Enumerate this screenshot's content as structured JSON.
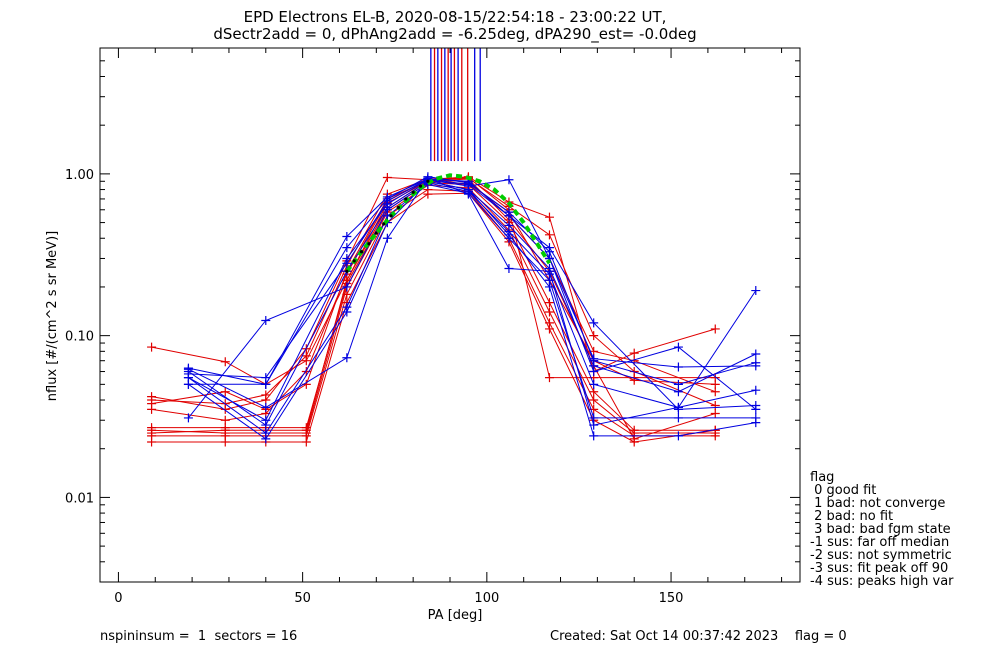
{
  "chart_data": {
    "type": "scatter",
    "title_line1": "EPD Electrons EL-B, 2020-08-15/22:54:18 - 23:00:22 UT,",
    "title_line2": "dSectr2add = 0, dPhAng2add = -6.25deg, dPA290_est=  -0.0deg",
    "xlabel": "PA [deg]",
    "ylabel": "nflux [#/(cm^2 s sr MeV)]",
    "xlim": [
      -5,
      185
    ],
    "ylim": [
      0.003,
      6
    ],
    "yscale": "log",
    "xticks": [
      0,
      50,
      100,
      150
    ],
    "xtick_labels": [
      "0",
      "50",
      "100",
      "150"
    ],
    "yticks": [
      0.01,
      0.1,
      1
    ],
    "ytick_labels": [
      "0.01",
      "0.10",
      "1.00"
    ],
    "colors": {
      "red": "#e00000",
      "blue": "#0000e0",
      "green": "#00cc00",
      "black": "#000000"
    },
    "series": [
      {
        "color": "red",
        "x": [
          9,
          29,
          40,
          51,
          62,
          73,
          84,
          95,
          106,
          117,
          129,
          140,
          162
        ],
        "y": [
          0.085,
          0.069,
          0.05,
          0.07,
          0.22,
          0.62,
          0.9,
          0.87,
          0.58,
          0.22,
          0.07,
          0.053,
          0.05
        ]
      },
      {
        "color": "red",
        "x": [
          9,
          29,
          40,
          51,
          62,
          73,
          84,
          95,
          106,
          117,
          129,
          140,
          162
        ],
        "y": [
          0.042,
          0.035,
          0.04,
          0.083,
          0.29,
          0.95,
          0.92,
          0.96,
          0.67,
          0.54,
          0.06,
          0.078,
          0.11
        ]
      },
      {
        "color": "red",
        "x": [
          9,
          29,
          40,
          51,
          62,
          73,
          84,
          95,
          106,
          117,
          129,
          140,
          162
        ],
        "y": [
          0.026,
          0.025,
          0.025,
          0.025,
          0.2,
          0.58,
          0.85,
          0.82,
          0.45,
          0.14,
          0.04,
          0.025,
          0.025
        ]
      },
      {
        "color": "red",
        "x": [
          9,
          29,
          40,
          51,
          62,
          73,
          84,
          95,
          106,
          117,
          129,
          140,
          162
        ],
        "y": [
          0.027,
          0.027,
          0.027,
          0.027,
          0.21,
          0.6,
          0.88,
          0.86,
          0.5,
          0.16,
          0.045,
          0.026,
          0.026
        ]
      },
      {
        "color": "red",
        "x": [
          9,
          29,
          40,
          51,
          62,
          73,
          84,
          95,
          106,
          117,
          129,
          140,
          162
        ],
        "y": [
          0.024,
          0.024,
          0.024,
          0.024,
          0.18,
          0.55,
          0.8,
          0.78,
          0.4,
          0.12,
          0.035,
          0.024,
          0.024
        ]
      },
      {
        "color": "red",
        "x": [
          9,
          29,
          40,
          51,
          62,
          73,
          84,
          95,
          106,
          117,
          129,
          140,
          162
        ],
        "y": [
          0.022,
          0.022,
          0.022,
          0.022,
          0.16,
          0.5,
          0.75,
          0.76,
          0.38,
          0.11,
          0.03,
          0.022,
          0.026
        ]
      },
      {
        "color": "red",
        "x": [
          9,
          29,
          40,
          51,
          62,
          73,
          84,
          95,
          106,
          117,
          129,
          140,
          162
        ],
        "y": [
          0.038,
          0.045,
          0.035,
          0.05,
          0.25,
          0.7,
          0.91,
          0.9,
          0.55,
          0.3,
          0.08,
          0.07,
          0.045
        ]
      },
      {
        "color": "red",
        "x": [
          9,
          29,
          40,
          51,
          62,
          73,
          84,
          95,
          106,
          117,
          129,
          140,
          162
        ],
        "y": [
          0.035,
          0.03,
          0.033,
          0.06,
          0.24,
          0.68,
          0.92,
          0.94,
          0.63,
          0.42,
          0.1,
          0.06,
          0.037
        ]
      },
      {
        "color": "red",
        "x": [
          9,
          29,
          40,
          51,
          62,
          73,
          84,
          95,
          106,
          117,
          129,
          140,
          162
        ],
        "y": [
          0.04,
          0.038,
          0.043,
          0.075,
          0.27,
          0.75,
          0.93,
          0.95,
          0.6,
          0.055,
          0.055,
          0.055,
          0.055
        ]
      },
      {
        "color": "red",
        "x": [
          9,
          29,
          40,
          51,
          62,
          73,
          84,
          95,
          106,
          117,
          129,
          140,
          162
        ],
        "y": [
          0.025,
          0.026,
          0.026,
          0.026,
          0.22,
          0.66,
          0.9,
          0.93,
          0.52,
          0.25,
          0.065,
          0.023,
          0.033
        ]
      },
      {
        "color": "blue",
        "x": [
          19,
          40,
          62,
          73,
          84,
          95,
          106,
          117,
          129,
          152,
          173
        ],
        "y": [
          0.063,
          0.05,
          0.41,
          0.72,
          0.93,
          0.9,
          0.55,
          0.35,
          0.12,
          0.035,
          0.037
        ]
      },
      {
        "color": "blue",
        "x": [
          19,
          40,
          62,
          73,
          84,
          95,
          106,
          117,
          129,
          152,
          173
        ],
        "y": [
          0.05,
          0.05,
          0.35,
          0.7,
          0.96,
          0.88,
          0.58,
          0.33,
          0.07,
          0.05,
          0.068
        ]
      },
      {
        "color": "blue",
        "x": [
          19,
          40,
          62,
          73,
          84,
          95,
          106,
          117,
          129,
          152,
          173
        ],
        "y": [
          0.055,
          0.03,
          0.3,
          0.65,
          0.92,
          0.84,
          0.92,
          0.3,
          0.06,
          0.085,
          0.035
        ]
      },
      {
        "color": "blue",
        "x": [
          19,
          40,
          62,
          73,
          84,
          95,
          106,
          117,
          129,
          152,
          173
        ],
        "y": [
          0.06,
          0.028,
          0.25,
          0.62,
          0.9,
          0.8,
          0.48,
          0.26,
          0.065,
          0.045,
          0.077
        ]
      },
      {
        "color": "blue",
        "x": [
          19,
          40,
          62,
          73,
          84,
          95,
          106,
          117,
          129,
          152,
          173
        ],
        "y": [
          0.031,
          0.124,
          0.2,
          0.6,
          0.88,
          0.78,
          0.44,
          0.24,
          0.05,
          0.036,
          0.19
        ]
      },
      {
        "color": "blue",
        "x": [
          19,
          40,
          62,
          73,
          84,
          95,
          106,
          117,
          129,
          152,
          173
        ],
        "y": [
          0.055,
          0.025,
          0.15,
          0.55,
          0.86,
          0.76,
          0.4,
          0.22,
          0.031,
          0.031,
          0.031
        ]
      },
      {
        "color": "blue",
        "x": [
          19,
          40,
          62,
          73,
          84,
          95,
          106,
          117,
          129,
          152,
          173
        ],
        "y": [
          0.05,
          0.023,
          0.14,
          0.5,
          0.9,
          0.8,
          0.42,
          0.2,
          0.024,
          0.024,
          0.029
        ]
      },
      {
        "color": "blue",
        "x": [
          19,
          40,
          62,
          73,
          84,
          95,
          106,
          117,
          129,
          152,
          173
        ],
        "y": [
          0.062,
          0.036,
          0.073,
          0.4,
          0.94,
          0.75,
          0.26,
          0.25,
          0.028,
          0.036,
          0.046
        ]
      },
      {
        "color": "blue",
        "x": [
          19,
          40,
          62,
          73,
          84,
          95,
          106,
          117,
          129,
          152,
          173
        ],
        "y": [
          0.058,
          0.055,
          0.28,
          0.68,
          0.93,
          0.86,
          0.55,
          0.3,
          0.072,
          0.064,
          0.065
        ]
      }
    ],
    "fit_curve": {
      "color": "green",
      "x": [
        62,
        66,
        70,
        74,
        78,
        82,
        86,
        90,
        94,
        98,
        102,
        106,
        110,
        114,
        117
      ],
      "y": [
        0.25,
        0.33,
        0.43,
        0.55,
        0.68,
        0.82,
        0.93,
        0.98,
        0.96,
        0.9,
        0.8,
        0.66,
        0.5,
        0.36,
        0.28
      ]
    },
    "dot_curve": {
      "color": "black",
      "x": [
        62,
        64,
        66,
        68,
        70,
        72,
        74,
        76,
        78,
        80,
        82,
        84
      ],
      "y": [
        0.25,
        0.29,
        0.33,
        0.37,
        0.43,
        0.49,
        0.55,
        0.62,
        0.7,
        0.77,
        0.84,
        0.9
      ]
    },
    "vertical_lines": [
      {
        "x": 84.8,
        "color": "blue"
      },
      {
        "x": 85.8,
        "color": "red"
      },
      {
        "x": 86.7,
        "color": "blue"
      },
      {
        "x": 87.7,
        "color": "red"
      },
      {
        "x": 88.6,
        "color": "blue"
      },
      {
        "x": 89.5,
        "color": "red"
      },
      {
        "x": 90.3,
        "color": "blue"
      },
      {
        "x": 91.2,
        "color": "red"
      },
      {
        "x": 92.2,
        "color": "blue"
      },
      {
        "x": 93.2,
        "color": "red"
      },
      {
        "x": 94.8,
        "color": "red"
      },
      {
        "x": 96.7,
        "color": "blue"
      },
      {
        "x": 98.2,
        "color": "blue"
      }
    ],
    "vertical_lines_range": [
      1.2,
      6
    ],
    "legend": {
      "title": "flag",
      "entries": [
        " 0 good fit",
        " 1 bad: not converge",
        " 2 bad: no fit",
        " 3 bad: bad fgm state",
        "-1 sus: far off median",
        "-2 sus: not symmetric",
        "-3 sus: fit peak off 90",
        "-4 sus: peaks high var"
      ]
    }
  },
  "footer": {
    "left": "nspininsum =  1  sectors = 16",
    "right": "Created: Sat Oct 14 00:37:42 2023    flag = 0"
  }
}
